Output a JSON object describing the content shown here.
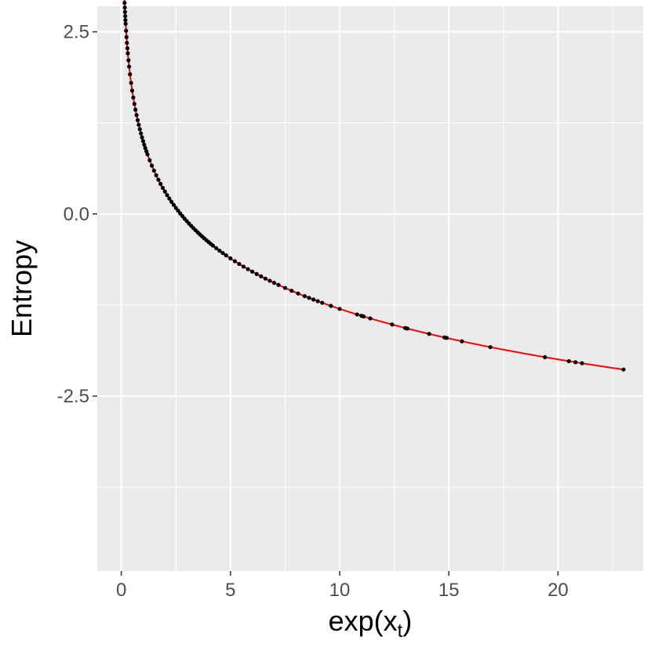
{
  "chart_data": {
    "type": "scatter",
    "xlabel": "exp(x_t)",
    "xlabel_main": "exp(x",
    "xlabel_sub": "t",
    "xlabel_close": ")",
    "ylabel": "Entropy",
    "xlim": [
      -1.1,
      23.9
    ],
    "ylim": [
      -4.9,
      2.85
    ],
    "x_ticks": [
      0,
      5,
      10,
      15,
      20
    ],
    "x_tick_labels": [
      "0",
      "5",
      "10",
      "15",
      "20"
    ],
    "x_minor_ticks": [
      2.5,
      7.5,
      12.5,
      17.5,
      22.5
    ],
    "y_ticks": [
      2.5,
      0.0,
      -2.5
    ],
    "y_tick_labels": [
      "2.5",
      "0.0",
      "-2.5"
    ],
    "y_minor_ticks": [
      1.25,
      -1.25,
      -3.75
    ],
    "grid": true,
    "background": "#ebebeb",
    "grid_color": "#ffffff",
    "point_color": "#000000",
    "line_color": "#ff0000",
    "fit_line": {
      "model": "y = 1 - ln(x)",
      "x_from": 0.03,
      "x_to": 23.0
    },
    "points_x": [
      0.03,
      0.06,
      0.065,
      0.07,
      0.075,
      0.08,
      0.085,
      0.09,
      0.095,
      0.1,
      0.105,
      0.11,
      0.115,
      0.12,
      0.125,
      0.13,
      0.14,
      0.15,
      0.16,
      0.17,
      0.18,
      0.19,
      0.2,
      0.22,
      0.24,
      0.26,
      0.28,
      0.3,
      0.33,
      0.36,
      0.4,
      0.45,
      0.5,
      0.55,
      0.6,
      0.65,
      0.7,
      0.75,
      0.8,
      0.85,
      0.9,
      0.95,
      1.0,
      1.05,
      1.1,
      1.15,
      1.2,
      1.3,
      1.4,
      1.5,
      1.6,
      1.7,
      1.8,
      1.9,
      2.0,
      2.1,
      2.2,
      2.3,
      2.4,
      2.5,
      2.6,
      2.7,
      2.8,
      2.9,
      3.0,
      3.1,
      3.2,
      3.3,
      3.4,
      3.5,
      3.6,
      3.7,
      3.8,
      3.9,
      4.0,
      4.1,
      4.2,
      4.35,
      4.5,
      4.65,
      4.8,
      5.0,
      5.2,
      5.4,
      5.6,
      5.8,
      6.0,
      6.2,
      6.4,
      6.6,
      6.8,
      7.0,
      7.2,
      7.5,
      7.8,
      8.1,
      8.4,
      8.6,
      8.8,
      9.0,
      9.2,
      9.6,
      10.0,
      10.8,
      11.0,
      11.1,
      11.4,
      12.4,
      13.0,
      13.1,
      14.1,
      14.8,
      14.9,
      15.6,
      16.9,
      19.4,
      20.5,
      20.8,
      21.1,
      23.0
    ]
  }
}
